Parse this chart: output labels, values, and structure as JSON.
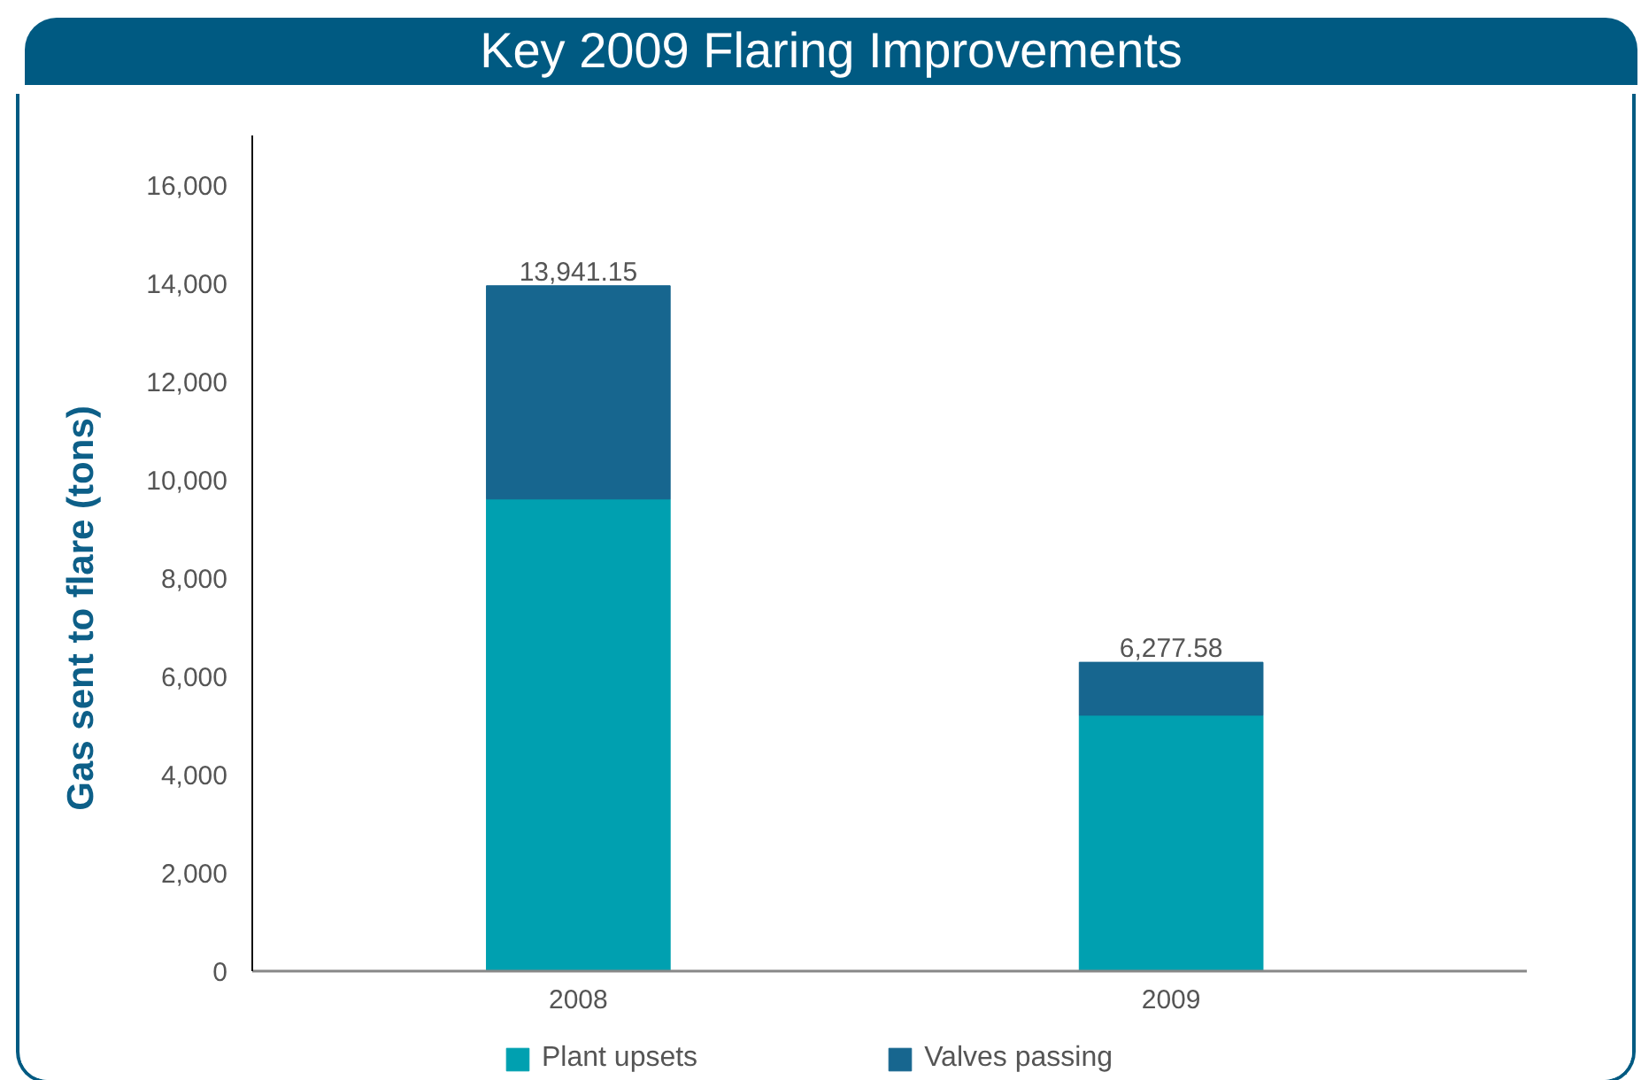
{
  "chart_data": {
    "type": "bar",
    "title": "Key 2009 Flaring Improvements",
    "ylabel": "Gas sent to flare (tons)",
    "categories": [
      "2008",
      "2009"
    ],
    "series": [
      {
        "name": "Plant upsets",
        "color": "#00a0b0",
        "values": [
          9600,
          5200
        ]
      },
      {
        "name": "Valves passing",
        "color": "#17668f",
        "values": [
          4341.15,
          1077.58
        ]
      }
    ],
    "stacked": true,
    "totals": [
      "13,941.15",
      "6,277.58"
    ],
    "ylim": [
      0,
      17000
    ],
    "yticks": [
      0,
      {
        "value": 2000,
        "label": "2,000"
      },
      {
        "value": 4000,
        "label": "4,000"
      },
      {
        "value": 6000,
        "label": "6,000"
      },
      {
        "value": 8000,
        "label": "8,000"
      },
      {
        "value": 10000,
        "label": "10,000"
      },
      {
        "value": 12000,
        "label": "12,000"
      },
      {
        "value": 14000,
        "label": "14,000"
      },
      {
        "value": 16000,
        "label": "16,000"
      }
    ],
    "legend": "bottom"
  }
}
